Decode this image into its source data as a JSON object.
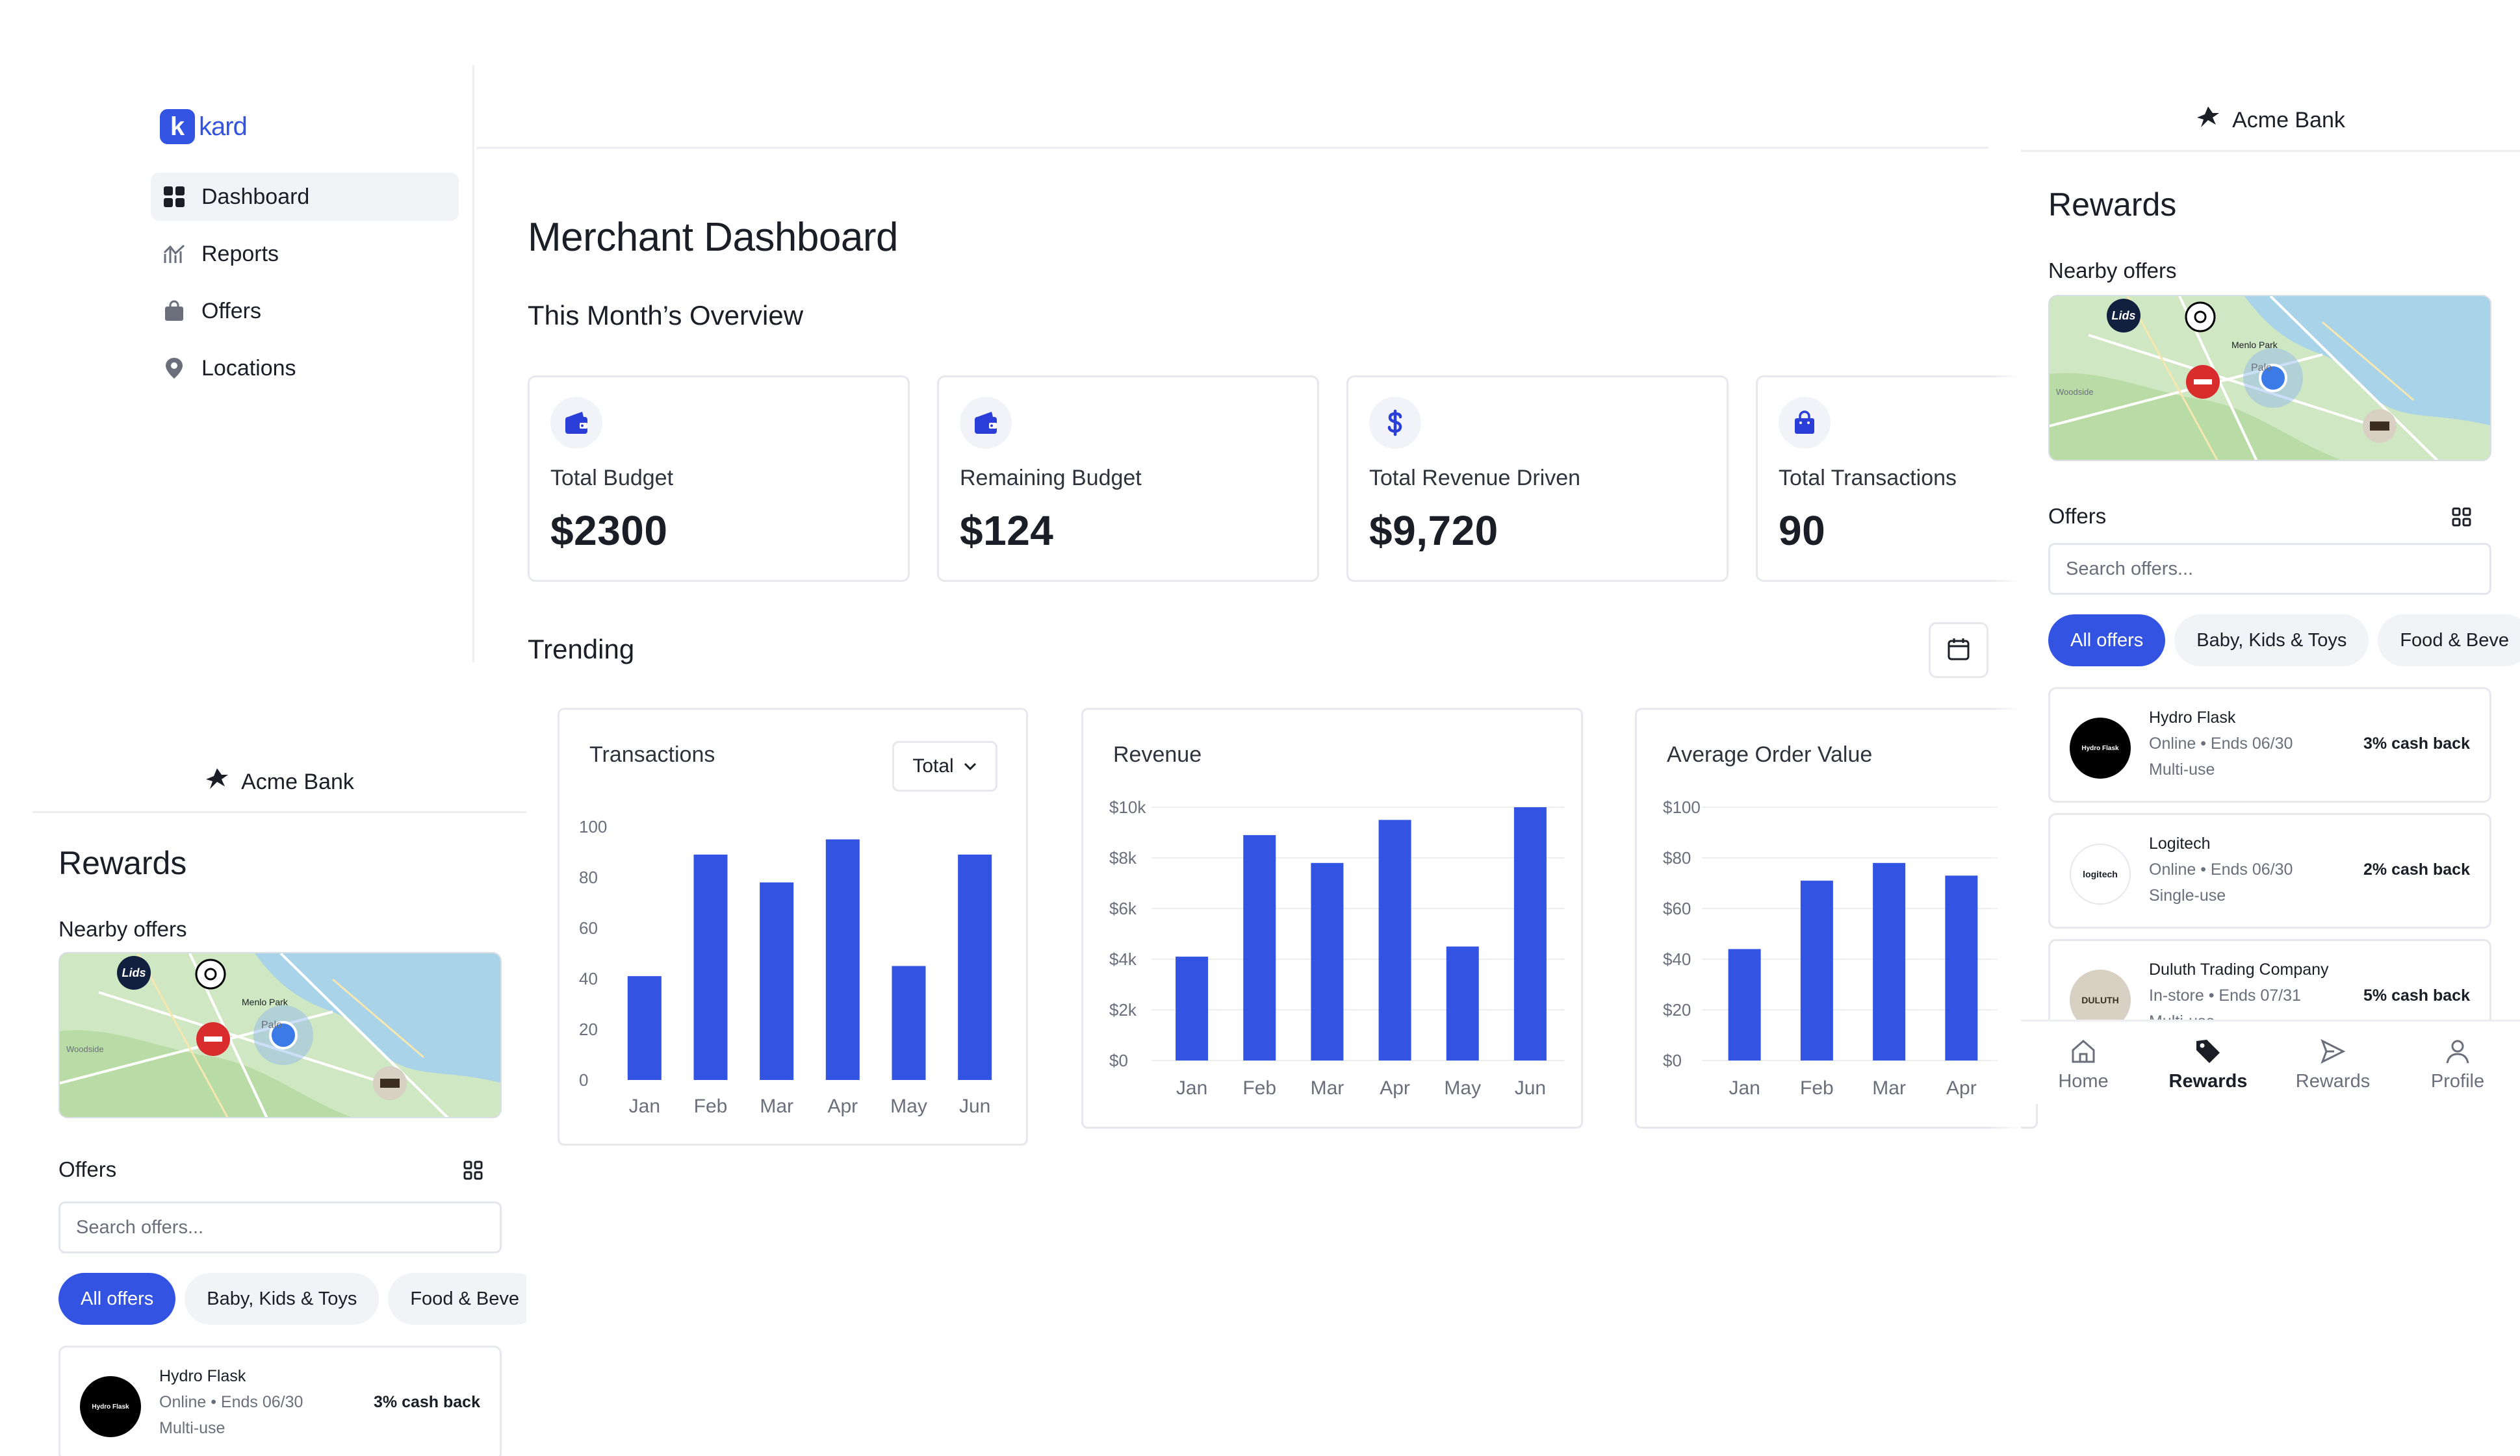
{
  "brand": {
    "logo_letter": "k",
    "logo_text": "kard",
    "accent": "#3354e3"
  },
  "sidebar": {
    "items": [
      {
        "label": "Dashboard",
        "icon": "grid-icon",
        "active": true
      },
      {
        "label": "Reports",
        "icon": "chart-icon",
        "active": false
      },
      {
        "label": "Offers",
        "icon": "bag-icon",
        "active": false
      },
      {
        "label": "Locations",
        "icon": "pin-icon",
        "active": false
      }
    ]
  },
  "main": {
    "title": "Merchant Dashboard",
    "overview_title": "This Month’s Overview",
    "stats": [
      {
        "label": "Total Budget",
        "value": "$2300",
        "icon": "wallet-icon"
      },
      {
        "label": "Remaining Budget",
        "value": "$124",
        "icon": "wallet-icon"
      },
      {
        "label": "Total Revenue Driven",
        "value": "$9,720",
        "icon": "dollar-icon"
      },
      {
        "label": "Total Transactions",
        "value": "90",
        "icon": "bag-icon"
      }
    ],
    "trending_title": "Trending",
    "dropdown_label": "Total"
  },
  "chart_data": [
    {
      "type": "bar",
      "title": "Transactions",
      "categories": [
        "Jan",
        "Feb",
        "Mar",
        "Apr",
        "May",
        "Jun"
      ],
      "values": [
        41,
        89,
        78,
        95,
        45,
        89
      ],
      "ylim": [
        0,
        100
      ],
      "yticks": [
        "0",
        "20",
        "40",
        "60",
        "80",
        "100"
      ],
      "grid": false
    },
    {
      "type": "bar",
      "title": "Revenue",
      "categories": [
        "Jan",
        "Feb",
        "Mar",
        "Apr",
        "May",
        "Jun"
      ],
      "values": [
        4100,
        8900,
        7800,
        9500,
        4500,
        10000
      ],
      "ylim": [
        0,
        10000
      ],
      "yticks": [
        "$0",
        "$2k",
        "$4k",
        "$6k",
        "$8k",
        "$10k"
      ],
      "grid": true
    },
    {
      "type": "bar",
      "title": "Average Order Value",
      "categories": [
        "Jan",
        "Feb",
        "Mar",
        "Apr"
      ],
      "values": [
        44,
        71,
        78,
        73
      ],
      "ylim": [
        0,
        100
      ],
      "yticks": [
        "$0",
        "$20",
        "$40",
        "$60",
        "$80",
        "$100"
      ],
      "grid": true
    }
  ],
  "mobile": {
    "bank_name": "Acme Bank",
    "title": "Rewards",
    "nearby_title": "Nearby offers",
    "map_labels": {
      "menlo": "Menlo Park",
      "palo": "Palo",
      "woodside": "Woodside"
    },
    "offers_title": "Offers",
    "search_placeholder": "Search offers...",
    "chips": [
      "All offers",
      "Baby, Kids & Toys",
      "Food & Beve"
    ],
    "offers": [
      {
        "name": "Hydro Flask",
        "meta": "Online • Ends 06/30",
        "use": "Multi-use",
        "cashback": "3% cash back",
        "logo_text": "Hydro Flask",
        "logo_bg": "#000000",
        "logo_fg": "#ffffff"
      },
      {
        "name": "Logitech",
        "meta": "Online • Ends 06/30",
        "use": "Single-use",
        "cashback": "2% cash back",
        "logo_text": "logitech",
        "logo_bg": "#ffffff",
        "logo_fg": "#1b1d27"
      },
      {
        "name": "Duluth Trading Company",
        "meta": "In-store • Ends 07/31",
        "use": "Multi-use",
        "cashback": "5% cash back",
        "logo_text": "DULUTH",
        "logo_bg": "#d8d1c3",
        "logo_fg": "#3b2d22"
      }
    ],
    "tabs": [
      {
        "label": "Home",
        "icon": "home-icon",
        "active": false
      },
      {
        "label": "Rewards",
        "icon": "tag-icon",
        "active": true
      },
      {
        "label": "Rewards",
        "icon": "send-icon",
        "active": false
      },
      {
        "label": "Profile",
        "icon": "person-icon",
        "active": false
      }
    ]
  }
}
